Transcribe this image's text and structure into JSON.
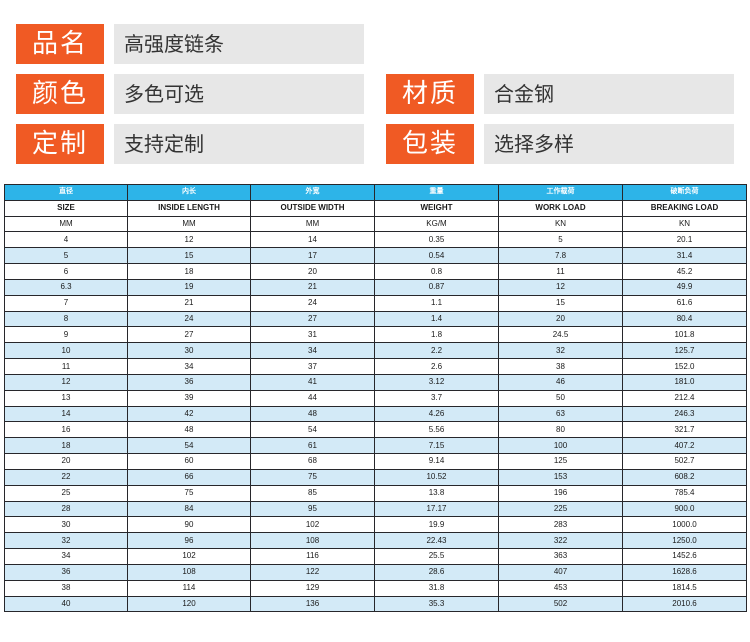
{
  "info": {
    "name_label": "品名",
    "name_value": "高强度链条",
    "color_label": "颜色",
    "color_value": "多色可选",
    "material_label": "材质",
    "material_value": "合金钢",
    "custom_label": "定制",
    "custom_value": "支持定制",
    "package_label": "包装",
    "package_value": "选择多样"
  },
  "colors": {
    "tag_orange": "#f05a24",
    "value_gray": "#e7e7e7",
    "header_blue": "#2db4e8",
    "row_stripe": "#d3eaf7"
  },
  "table": {
    "headers_cn": [
      "直径",
      "内长",
      "外宽",
      "重量",
      "工作载荷",
      "破断负荷"
    ],
    "headers_en": [
      "SIZE",
      "INSIDE LENGTH",
      "OUTSIDE WIDTH",
      "WEIGHT",
      "WORK LOAD",
      "BREAKING LOAD"
    ],
    "units": [
      "MM",
      "MM",
      "MM",
      "KG/M",
      "KN",
      "KN"
    ],
    "rows": [
      [
        "4",
        "12",
        "14",
        "0.35",
        "5",
        "20.1"
      ],
      [
        "5",
        "15",
        "17",
        "0.54",
        "7.8",
        "31.4"
      ],
      [
        "6",
        "18",
        "20",
        "0.8",
        "11",
        "45.2"
      ],
      [
        "6.3",
        "19",
        "21",
        "0.87",
        "12",
        "49.9"
      ],
      [
        "7",
        "21",
        "24",
        "1.1",
        "15",
        "61.6"
      ],
      [
        "8",
        "24",
        "27",
        "1.4",
        "20",
        "80.4"
      ],
      [
        "9",
        "27",
        "31",
        "1.8",
        "24.5",
        "101.8"
      ],
      [
        "10",
        "30",
        "34",
        "2.2",
        "32",
        "125.7"
      ],
      [
        "11",
        "34",
        "37",
        "2.6",
        "38",
        "152.0"
      ],
      [
        "12",
        "36",
        "41",
        "3.12",
        "46",
        "181.0"
      ],
      [
        "13",
        "39",
        "44",
        "3.7",
        "50",
        "212.4"
      ],
      [
        "14",
        "42",
        "48",
        "4.26",
        "63",
        "246.3"
      ],
      [
        "16",
        "48",
        "54",
        "5.56",
        "80",
        "321.7"
      ],
      [
        "18",
        "54",
        "61",
        "7.15",
        "100",
        "407.2"
      ],
      [
        "20",
        "60",
        "68",
        "9.14",
        "125",
        "502.7"
      ],
      [
        "22",
        "66",
        "75",
        "10.52",
        "153",
        "608.2"
      ],
      [
        "25",
        "75",
        "85",
        "13.8",
        "196",
        "785.4"
      ],
      [
        "28",
        "84",
        "95",
        "17.17",
        "225",
        "900.0"
      ],
      [
        "30",
        "90",
        "102",
        "19.9",
        "283",
        "1000.0"
      ],
      [
        "32",
        "96",
        "108",
        "22.43",
        "322",
        "1250.0"
      ],
      [
        "34",
        "102",
        "116",
        "25.5",
        "363",
        "1452.6"
      ],
      [
        "36",
        "108",
        "122",
        "28.6",
        "407",
        "1628.6"
      ],
      [
        "38",
        "114",
        "129",
        "31.8",
        "453",
        "1814.5"
      ],
      [
        "40",
        "120",
        "136",
        "35.3",
        "502",
        "2010.6"
      ]
    ]
  }
}
